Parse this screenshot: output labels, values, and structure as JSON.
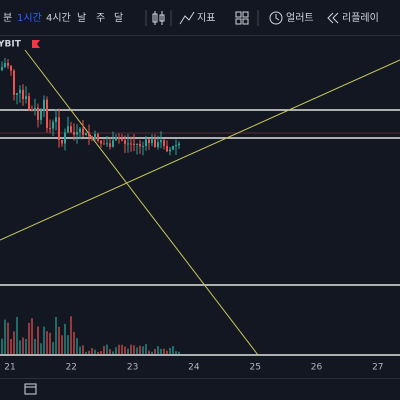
{
  "toolbar": {
    "intervals": [
      "분",
      "1시간",
      "4시간",
      "날",
      "주",
      "달"
    ],
    "active": 1,
    "indicators": "지표",
    "alert": "얼러트",
    "replay": "리플레이"
  },
  "symbol": {
    "exchange": "YBIT"
  },
  "x_axis": {
    "labels": [
      "21",
      "22",
      "23",
      "24",
      "25",
      "26",
      "27"
    ]
  }
}
